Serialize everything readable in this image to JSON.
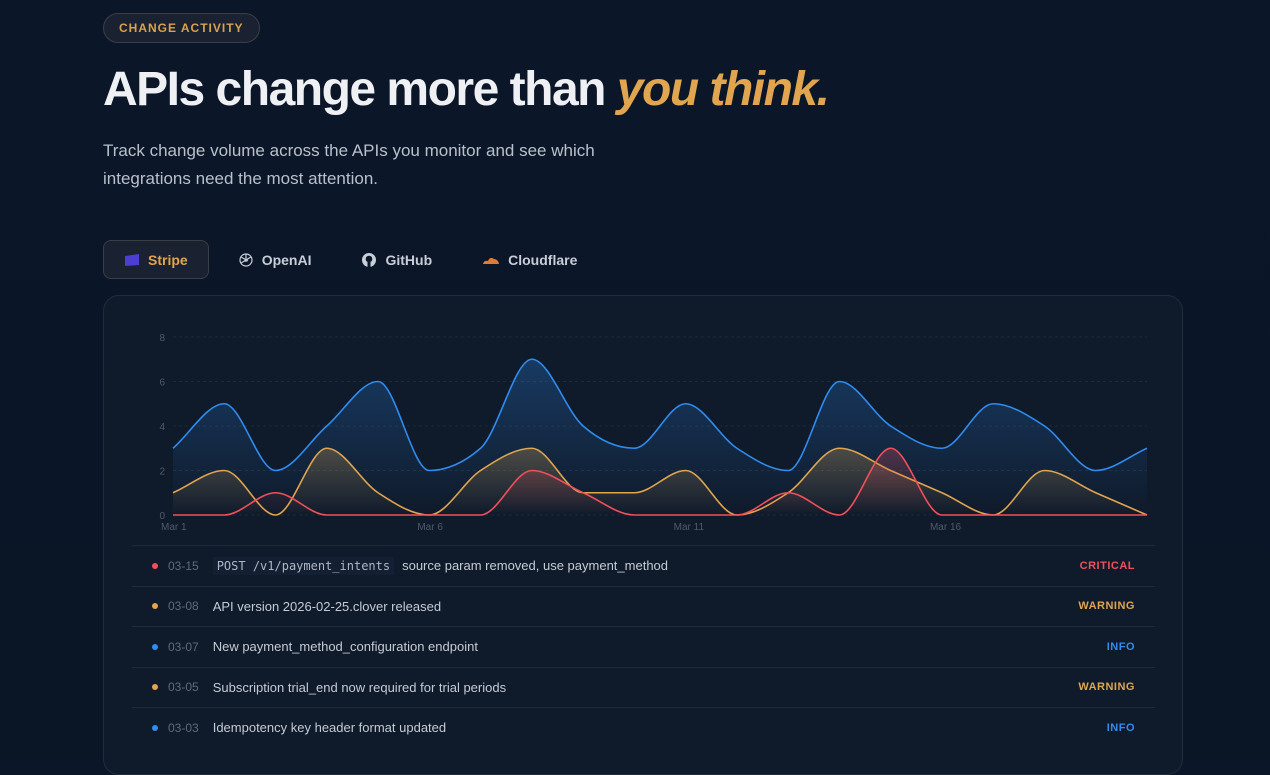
{
  "badge": "CHANGE ACTIVITY",
  "headline": {
    "main": "APIs change more than ",
    "accent": "you think."
  },
  "subtitle": "Track change volume across the APIs you monitor and see which integrations need the most attention.",
  "tabs": [
    {
      "label": "Stripe",
      "icon": "stripe-icon",
      "active": true
    },
    {
      "label": "OpenAI",
      "icon": "openai-icon"
    },
    {
      "label": "GitHub",
      "icon": "github-icon"
    },
    {
      "label": "Cloudflare",
      "icon": "cloudflare-icon"
    }
  ],
  "colors": {
    "info": "#2f8cf0",
    "warning": "#e0a54e",
    "critical": "#f0505a"
  },
  "chart_data": {
    "type": "area",
    "x": [
      "Mar 1",
      "Mar 2",
      "Mar 3",
      "Mar 4",
      "Mar 5",
      "Mar 6",
      "Mar 7",
      "Mar 8",
      "Mar 9",
      "Mar 10",
      "Mar 11",
      "Mar 12",
      "Mar 13",
      "Mar 14",
      "Mar 15",
      "Mar 16",
      "Mar 17",
      "Mar 18",
      "Mar 19",
      "Mar 20"
    ],
    "x_ticks": [
      "Mar 1",
      "Mar 6",
      "Mar 11",
      "Mar 16"
    ],
    "y_ticks": [
      0,
      2,
      4,
      6,
      8
    ],
    "ylim": [
      0,
      8
    ],
    "grid": true,
    "series": [
      {
        "name": "info",
        "color": "#2f8cf0",
        "values": [
          3,
          5,
          2,
          4,
          6,
          2,
          3,
          7,
          4,
          3,
          5,
          3,
          2,
          6,
          4,
          3,
          5,
          4,
          2,
          3
        ]
      },
      {
        "name": "warning",
        "color": "#e0a54e",
        "values": [
          1,
          2,
          0,
          3,
          1,
          0,
          2,
          3,
          1,
          1,
          2,
          0,
          1,
          3,
          2,
          1,
          0,
          2,
          1,
          0
        ]
      },
      {
        "name": "critical",
        "color": "#f0505a",
        "values": [
          0,
          0,
          1,
          0,
          0,
          0,
          0,
          2,
          1,
          0,
          0,
          0,
          1,
          0,
          3,
          0,
          0,
          0,
          0,
          0
        ]
      }
    ]
  },
  "events": [
    {
      "date": "03-15",
      "code": "POST /v1/payment_intents",
      "text": "source param removed, use payment_method",
      "severity": "CRITICAL",
      "level": "critical"
    },
    {
      "date": "03-08",
      "code": "",
      "text": "API version 2026-02-25.clover released",
      "severity": "WARNING",
      "level": "warning"
    },
    {
      "date": "03-07",
      "code": "",
      "text": "New payment_method_configuration endpoint",
      "severity": "INFO",
      "level": "info"
    },
    {
      "date": "03-05",
      "code": "",
      "text": "Subscription trial_end now required for trial periods",
      "severity": "WARNING",
      "level": "warning"
    },
    {
      "date": "03-03",
      "code": "",
      "text": "Idempotency key header format updated",
      "severity": "INFO",
      "level": "info"
    }
  ]
}
